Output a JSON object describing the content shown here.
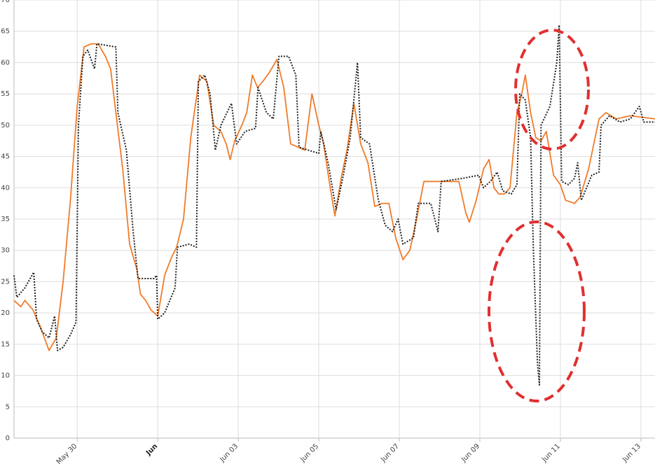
{
  "chart_data": {
    "type": "line",
    "xlim": [
      -1.57,
      14.35
    ],
    "ylim": [
      0,
      70
    ],
    "yticks": [
      0,
      5,
      10,
      15,
      20,
      25,
      30,
      35,
      40,
      45,
      50,
      55,
      60,
      65,
      70
    ],
    "xticks": [
      {
        "value": 0,
        "label": "May 30"
      },
      {
        "value": 2,
        "label": "Jun",
        "bold": true
      },
      {
        "value": 4,
        "label": "Jun 03"
      },
      {
        "value": 6,
        "label": "Jun 05"
      },
      {
        "value": 8,
        "label": "Jun 07"
      },
      {
        "value": 10,
        "label": "Jun 09"
      },
      {
        "value": 12,
        "label": "Jun 11"
      },
      {
        "value": 14,
        "label": "Jun 13"
      }
    ],
    "grid": true,
    "series": [
      {
        "color": "#f07b2a",
        "dash": false,
        "x": [
          -1.57,
          -1.4,
          -1.3,
          -1.1,
          -0.9,
          -0.7,
          -0.52,
          -0.35,
          -0.17,
          0,
          0.17,
          0.35,
          0.52,
          0.7,
          0.83,
          0.96,
          1.13,
          1.3,
          1.48,
          1.57,
          1.7,
          1.83,
          2,
          2.17,
          2.35,
          2.47,
          2.64,
          2.82,
          3.04,
          3.22,
          3.39,
          3.57,
          3.7,
          3.8,
          3.91,
          4.09,
          4.21,
          4.35,
          4.48,
          4.61,
          4.78,
          4.96,
          5.13,
          5.3,
          5.48,
          5.65,
          5.83,
          6,
          6.12,
          6.26,
          6.4,
          6.57,
          6.7,
          6.87,
          7.04,
          7.22,
          7.39,
          7.57,
          7.74,
          7.91,
          8.09,
          8.26,
          8.43,
          8.61,
          9.48,
          9.65,
          9.74,
          9.91,
          10.09,
          10.23,
          10.35,
          10.47,
          10.61,
          10.75,
          10.92,
          11.04,
          11.13,
          11.26,
          11.39,
          11.52,
          11.65,
          11.83,
          12,
          12.13,
          12.35,
          12.49,
          12.7,
          12.96,
          13.13,
          13.39,
          13.74,
          14.35
        ],
        "values": [
          22,
          21,
          22,
          20.5,
          17.5,
          14,
          16,
          25,
          38,
          53,
          62.5,
          63,
          63,
          61,
          59,
          52,
          43,
          31,
          27,
          23,
          22,
          20.5,
          19.5,
          26,
          29,
          30.5,
          35,
          48,
          58,
          57,
          50,
          49,
          47,
          44.5,
          47.5,
          50,
          52,
          58,
          56,
          57,
          58.5,
          60.5,
          56,
          47,
          46.5,
          46,
          55,
          50,
          47,
          41,
          35.5,
          42,
          46,
          53.5,
          47,
          44,
          37,
          37.5,
          37.5,
          32,
          28.5,
          30,
          35,
          41,
          41,
          36,
          34.5,
          38,
          43,
          44.5,
          40,
          39,
          39,
          40,
          52,
          55,
          58,
          52,
          48,
          47.5,
          49,
          42,
          40.5,
          38,
          37.5,
          38.5,
          43,
          51,
          52,
          51,
          51.5,
          51
        ]
      },
      {
        "color": "#222222",
        "dash": true,
        "x": [
          -1.57,
          -1.5,
          -1.3,
          -1.08,
          -1.01,
          -0.87,
          -0.7,
          -0.56,
          -0.49,
          -0.35,
          -0.17,
          -0.03,
          0.03,
          0.14,
          0.26,
          0.43,
          0.49,
          0.96,
          1.01,
          1.22,
          1.39,
          1.51,
          1.91,
          1.97,
          2,
          2.17,
          2.43,
          2.49,
          2.78,
          2.96,
          3.01,
          3.17,
          3.3,
          3.43,
          3.57,
          3.83,
          3.96,
          4.17,
          4.43,
          4.49,
          4.7,
          4.87,
          5.01,
          5.25,
          5.43,
          5.51,
          5.74,
          6,
          6.05,
          6.23,
          6.43,
          6.61,
          6.78,
          6.96,
          7.04,
          7.26,
          7.48,
          7.65,
          7.83,
          7.97,
          8.09,
          8.35,
          8.47,
          8.78,
          8.96,
          9.04,
          9.57,
          9.97,
          10.09,
          10.26,
          10.43,
          10.57,
          10.78,
          10.92,
          10.99,
          11.13,
          11.26,
          11.33,
          11.43,
          11.48,
          11.52,
          11.74,
          11.91,
          11.97,
          12.03,
          12.2,
          12.35,
          12.43,
          12.52,
          12.78,
          12.96,
          13.01,
          13.22,
          13.48,
          13.74,
          13.96,
          14.07,
          14.35
        ],
        "values": [
          26,
          22.5,
          24,
          26.5,
          19,
          17,
          16,
          19.5,
          14,
          14.5,
          16.5,
          18.5,
          50,
          61,
          62,
          59,
          63,
          62.5,
          52,
          46,
          33,
          25.5,
          25.5,
          26,
          19,
          20,
          24,
          30.5,
          31,
          30.5,
          57,
          58,
          55,
          46,
          50,
          53.5,
          47,
          49,
          49.5,
          56,
          52,
          51,
          61,
          61,
          58,
          46.5,
          46,
          45.5,
          49,
          44,
          36.5,
          42,
          48,
          60,
          48,
          47,
          38,
          34,
          33,
          35,
          31,
          32,
          37.5,
          37.5,
          33,
          41,
          41.5,
          42,
          40,
          41,
          42.5,
          39.5,
          39,
          40.5,
          55,
          54,
          48,
          30,
          12,
          8.5,
          50,
          53,
          60,
          66,
          41,
          40.5,
          41.5,
          44,
          38,
          42,
          42.5,
          50,
          51.5,
          50.5,
          51,
          53,
          50.5,
          50.5
        ]
      }
    ]
  }
}
